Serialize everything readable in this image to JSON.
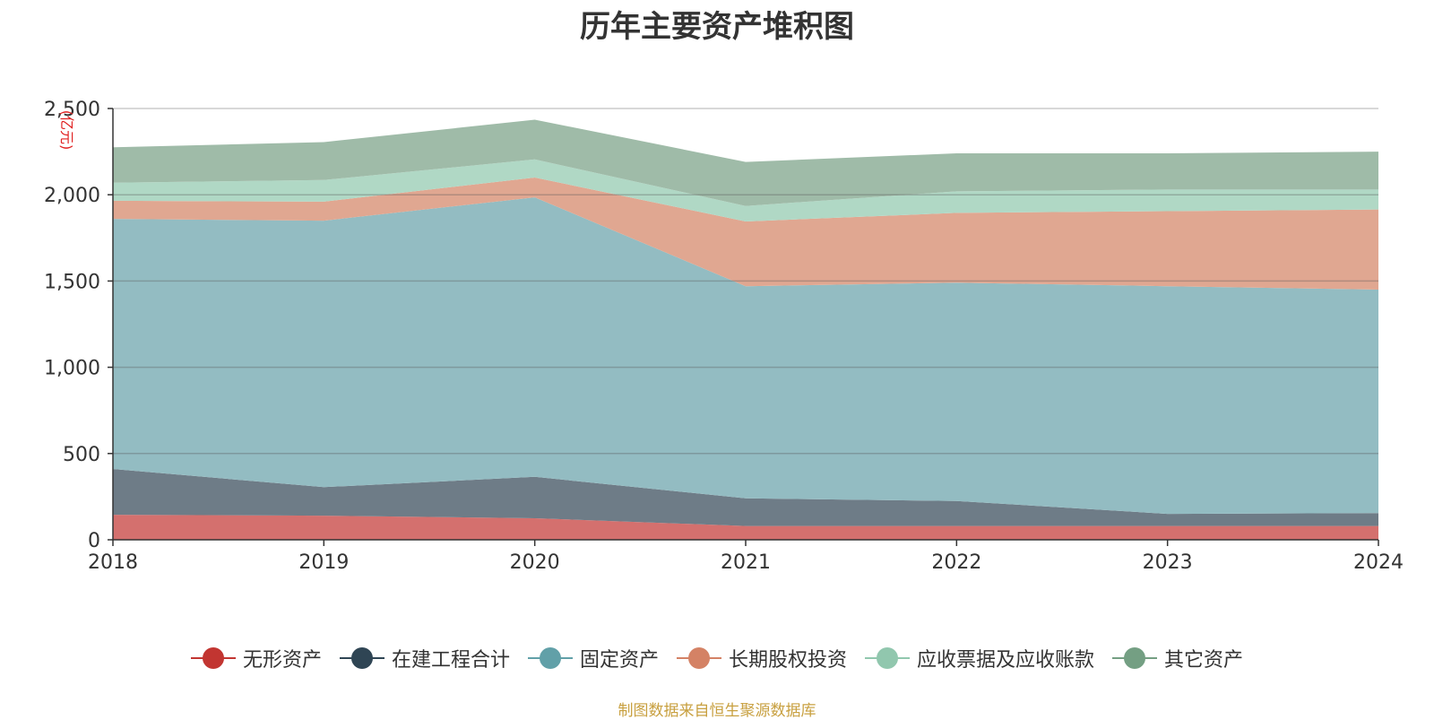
{
  "chart_data": {
    "type": "area",
    "stacked": true,
    "title": "历年主要资产堆积图",
    "ylabel": "(亿元)",
    "xlabel": "",
    "categories": [
      "2018",
      "2019",
      "2020",
      "2021",
      "2022",
      "2023",
      "2024"
    ],
    "ylim": [
      0,
      2500
    ],
    "yticks": [
      0,
      500,
      1000,
      1500,
      2000,
      2500
    ],
    "ytick_labels": [
      "0",
      "500",
      "1,000",
      "1,500",
      "2,000",
      "2,500"
    ],
    "grid": true,
    "legend_position": "bottom",
    "series": [
      {
        "name": "无形资产",
        "color": "#c23531",
        "area_color": "#d4706e",
        "values": [
          145,
          140,
          125,
          80,
          80,
          80,
          80
        ]
      },
      {
        "name": "在建工程合计",
        "color": "#2f4554",
        "area_color": "#6e7c87",
        "values": [
          265,
          165,
          240,
          160,
          145,
          70,
          75
        ]
      },
      {
        "name": "固定资产",
        "color": "#61a0a8",
        "area_color": "#93bcc2",
        "values": [
          1450,
          1545,
          1620,
          1230,
          1265,
          1320,
          1295
        ]
      },
      {
        "name": "长期股权投资",
        "color": "#d48265",
        "area_color": "#e0a791",
        "values": [
          105,
          110,
          115,
          375,
          405,
          435,
          465
        ]
      },
      {
        "name": "应收票据及应收账款",
        "color": "#91c7ae",
        "area_color": "#b0d8c5",
        "values": [
          105,
          125,
          105,
          90,
          125,
          125,
          115
        ]
      },
      {
        "name": "其它资产",
        "color": "#749f83",
        "area_color": "#9fbba8",
        "values": [
          205,
          220,
          230,
          255,
          220,
          210,
          220
        ]
      }
    ]
  },
  "source_text": "制图数据来自恒生聚源数据库"
}
